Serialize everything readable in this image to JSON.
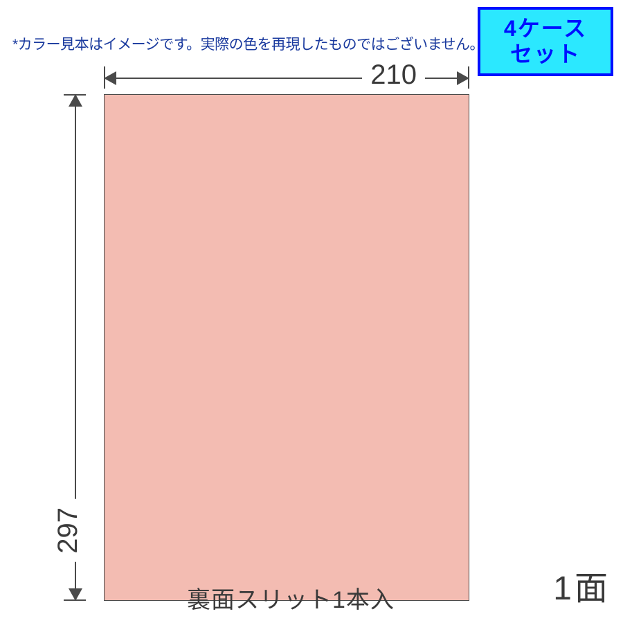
{
  "disclaimer": "*カラー見本はイメージです。実際の色を再現したものではございません。",
  "badge": {
    "line1": "4ケース",
    "line2": "セット",
    "bg_color": "#2be8ff",
    "border_color": "#0010ff",
    "text_color": "#0010ff"
  },
  "diagram": {
    "width_mm": "210",
    "height_mm": "297",
    "sheet_color": "#f3bcb2",
    "sheet_border_color": "#4a4a4a",
    "dim_line_color": "#4a4a4a",
    "face_label": "1面",
    "bottom_note": "裏面スリット1本入"
  },
  "colors": {
    "disclaimer_text": "#1a3a9e",
    "label_text": "#3a3a3a",
    "background": "#ffffff"
  },
  "fontsize": {
    "disclaimer": 21,
    "badge": 32,
    "dim_label": 40,
    "face_label": 48,
    "bottom_note": 34
  }
}
